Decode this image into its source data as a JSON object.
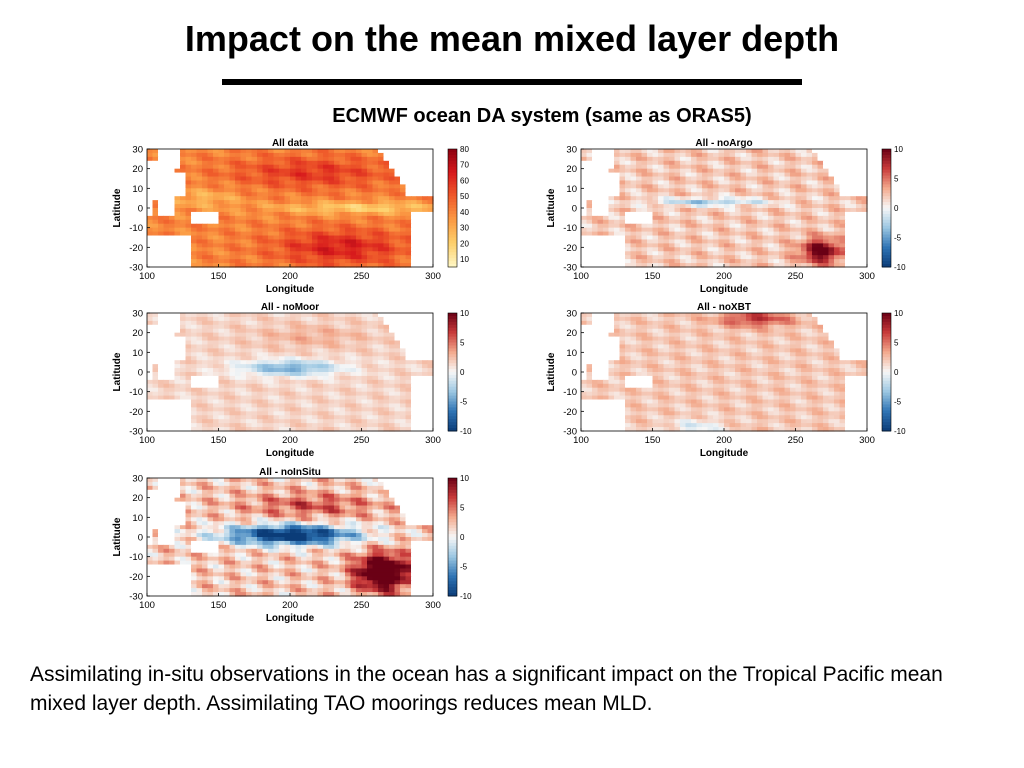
{
  "slide": {
    "title": "Impact on the mean mixed layer depth",
    "subtitle": "ECMWF ocean DA system (same as ORAS5)",
    "caption": "Assimilating in-situ observations in the ocean has a significant impact on the Tropical Pacific mean mixed layer depth. Assimilating TAO moorings reduces mean MLD."
  },
  "chart_data": [
    {
      "type": "heatmap",
      "title": "All data",
      "xlabel": "Longitude",
      "ylabel": "Latitude",
      "xlim": [
        100,
        300
      ],
      "ylim": [
        -30,
        30
      ],
      "xticks": [
        100,
        150,
        200,
        250,
        300
      ],
      "yticks": [
        30,
        20,
        10,
        0,
        -10,
        -20,
        -30
      ],
      "colorbar": {
        "range": [
          5,
          80
        ],
        "ticks": [
          80,
          70,
          60,
          50,
          40,
          30,
          20,
          10
        ],
        "colormap": "yellow-orange-red",
        "colors": [
          "#fff7c6",
          "#fdd06b",
          "#fb9a44",
          "#ef5a2a",
          "#d7191c",
          "#8b0010"
        ]
      }
    },
    {
      "type": "heatmap",
      "title": "All - noArgo",
      "xlabel": "Longitude",
      "ylabel": "Latitude",
      "xlim": [
        100,
        300
      ],
      "ylim": [
        -30,
        30
      ],
      "xticks": [
        100,
        150,
        200,
        250,
        300
      ],
      "yticks": [
        30,
        20,
        10,
        0,
        -10,
        -20,
        -30
      ],
      "colorbar": {
        "range": [
          -10,
          10
        ],
        "ticks": [
          10,
          5,
          0,
          -5,
          -10
        ],
        "colormap": "blue-white-red",
        "colors": [
          "#0b3c78",
          "#2f74b4",
          "#9cc7e2",
          "#f7f7f7",
          "#f3aa8d",
          "#c83a3a",
          "#6a0015"
        ]
      }
    },
    {
      "type": "heatmap",
      "title": "All - noMoor",
      "xlabel": "Longitude",
      "ylabel": "Latitude",
      "xlim": [
        100,
        300
      ],
      "ylim": [
        -30,
        30
      ],
      "xticks": [
        100,
        150,
        200,
        250,
        300
      ],
      "yticks": [
        30,
        20,
        10,
        0,
        -10,
        -20,
        -30
      ],
      "colorbar": {
        "range": [
          -10,
          10
        ],
        "ticks": [
          10,
          5,
          0,
          -5,
          -10
        ],
        "colormap": "blue-white-red",
        "colors": [
          "#0b3c78",
          "#2f74b4",
          "#9cc7e2",
          "#f7f7f7",
          "#f3aa8d",
          "#c83a3a",
          "#6a0015"
        ]
      }
    },
    {
      "type": "heatmap",
      "title": "All - noXBT",
      "xlabel": "Longitude",
      "ylabel": "Latitude",
      "xlim": [
        100,
        300
      ],
      "ylim": [
        -30,
        30
      ],
      "xticks": [
        100,
        150,
        200,
        250,
        300
      ],
      "yticks": [
        30,
        20,
        10,
        0,
        -10,
        -20,
        -30
      ],
      "colorbar": {
        "range": [
          -10,
          10
        ],
        "ticks": [
          10,
          5,
          0,
          -5,
          -10
        ],
        "colormap": "blue-white-red",
        "colors": [
          "#0b3c78",
          "#2f74b4",
          "#9cc7e2",
          "#f7f7f7",
          "#f3aa8d",
          "#c83a3a",
          "#6a0015"
        ]
      }
    },
    {
      "type": "heatmap",
      "title": "All - noInSitu",
      "xlabel": "Longitude",
      "ylabel": "Latitude",
      "xlim": [
        100,
        300
      ],
      "ylim": [
        -30,
        30
      ],
      "xticks": [
        100,
        150,
        200,
        250,
        300
      ],
      "yticks": [
        30,
        20,
        10,
        0,
        -10,
        -20,
        -30
      ],
      "colorbar": {
        "range": [
          -10,
          10
        ],
        "ticks": [
          10,
          5,
          0,
          -5,
          -10
        ],
        "colormap": "blue-white-red",
        "colors": [
          "#0b3c78",
          "#2f74b4",
          "#9cc7e2",
          "#f7f7f7",
          "#f3aa8d",
          "#c83a3a",
          "#6a0015"
        ]
      }
    }
  ]
}
